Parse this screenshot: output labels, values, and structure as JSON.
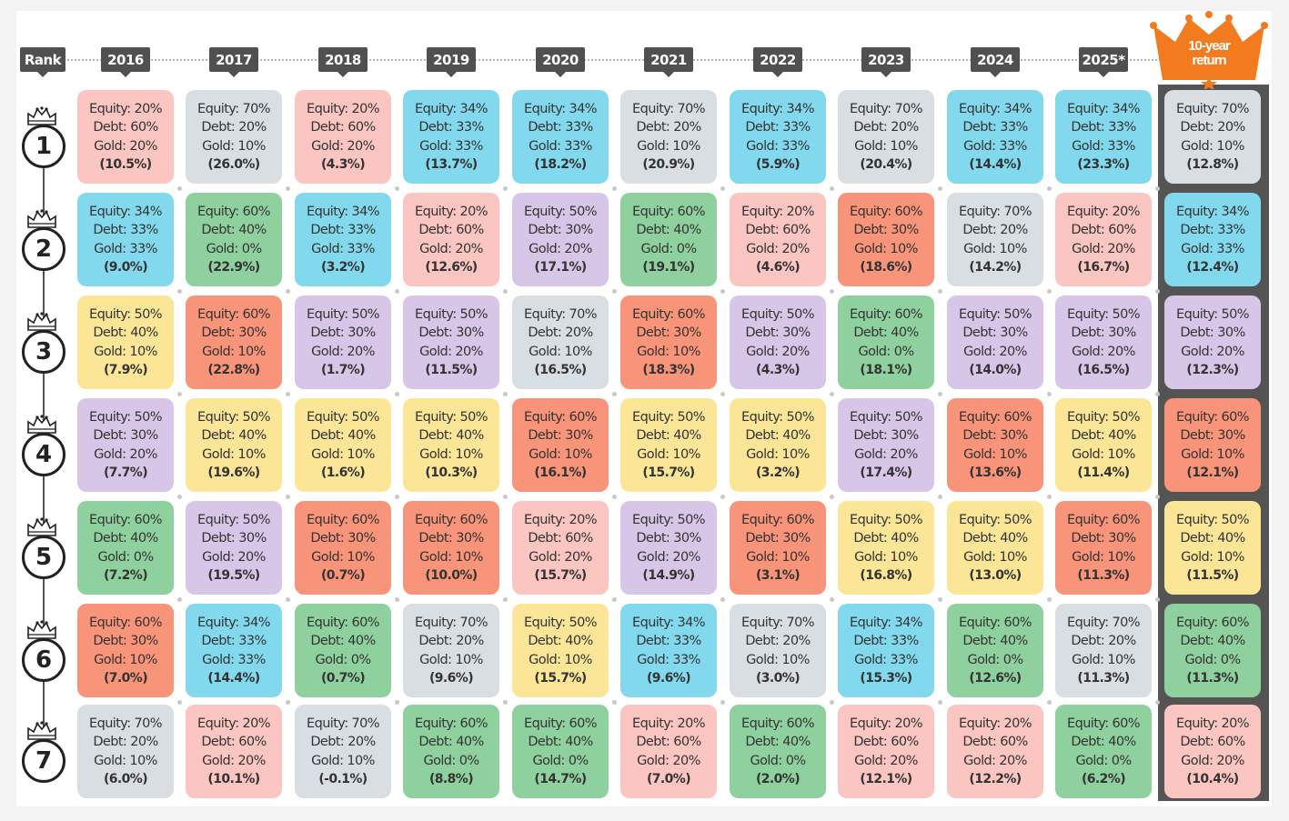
{
  "chart_data": {
    "type": "table",
    "header": {
      "rank_label": "Rank",
      "years": [
        "2016",
        "2017",
        "2018",
        "2019",
        "2020",
        "2021",
        "2022",
        "2023",
        "2024",
        "2025*"
      ],
      "ten_year_label": [
        "10-year",
        "return"
      ]
    },
    "ranks": [
      "1",
      "2",
      "3",
      "4",
      "5",
      "6",
      "7"
    ],
    "allocations": {
      "A": {
        "lines": [
          "Equity: 20%",
          "Debt: 60%",
          "Gold: 20%"
        ],
        "color": "#fbc5c1"
      },
      "B": {
        "lines": [
          "Equity: 70%",
          "Debt: 20%",
          "Gold: 10%"
        ],
        "color": "#d9dee3"
      },
      "C": {
        "lines": [
          "Equity: 34%",
          "Debt: 33%",
          "Gold: 33%"
        ],
        "color": "#82d9ee"
      },
      "D": {
        "lines": [
          "Equity: 60%",
          "Debt: 40%",
          "Gold: 0%"
        ],
        "color": "#8fd19e"
      },
      "E": {
        "lines": [
          "Equity: 50%",
          "Debt: 30%",
          "Gold: 20%"
        ],
        "color": "#d8c6e8"
      },
      "F": {
        "lines": [
          "Equity: 60%",
          "Debt: 30%",
          "Gold: 10%"
        ],
        "color": "#f8947a"
      },
      "G": {
        "lines": [
          "Equity: 50%",
          "Debt: 40%",
          "Gold: 10%"
        ],
        "color": "#fbe597"
      }
    },
    "columns": [
      {
        "label": "2016",
        "cells": [
          [
            "A",
            "(10.5%)"
          ],
          [
            "C",
            "(9.0%)"
          ],
          [
            "G",
            "(7.9%)"
          ],
          [
            "E",
            "(7.7%)"
          ],
          [
            "D",
            "(7.2%)"
          ],
          [
            "F",
            "(7.0%)"
          ],
          [
            "B",
            "(6.0%)"
          ]
        ]
      },
      {
        "label": "2017",
        "cells": [
          [
            "B",
            "(26.0%)"
          ],
          [
            "D",
            "(22.9%)"
          ],
          [
            "F",
            "(22.8%)"
          ],
          [
            "G",
            "(19.6%)"
          ],
          [
            "E",
            "(19.5%)"
          ],
          [
            "C",
            "(14.4%)"
          ],
          [
            "A",
            "(10.1%)"
          ]
        ]
      },
      {
        "label": "2018",
        "cells": [
          [
            "A",
            "(4.3%)"
          ],
          [
            "C",
            "(3.2%)"
          ],
          [
            "E",
            "(1.7%)"
          ],
          [
            "G",
            "(1.6%)"
          ],
          [
            "F",
            "(0.7%)"
          ],
          [
            "D",
            "(0.7%)"
          ],
          [
            "B",
            "(-0.1%)"
          ]
        ]
      },
      {
        "label": "2019",
        "cells": [
          [
            "C",
            "(13.7%)"
          ],
          [
            "A",
            "(12.6%)"
          ],
          [
            "E",
            "(11.5%)"
          ],
          [
            "G",
            "(10.3%)"
          ],
          [
            "F",
            "(10.0%)"
          ],
          [
            "B",
            "(9.6%)"
          ],
          [
            "D",
            "(8.8%)"
          ]
        ]
      },
      {
        "label": "2020",
        "cells": [
          [
            "C",
            "(18.2%)"
          ],
          [
            "E",
            "(17.1%)"
          ],
          [
            "B",
            "(16.5%)"
          ],
          [
            "F",
            "(16.1%)"
          ],
          [
            "A",
            "(15.7%)"
          ],
          [
            "G",
            "(15.7%)"
          ],
          [
            "D",
            "(14.7%)"
          ]
        ]
      },
      {
        "label": "2021",
        "cells": [
          [
            "B",
            "(20.9%)"
          ],
          [
            "D",
            "(19.1%)"
          ],
          [
            "F",
            "(18.3%)"
          ],
          [
            "G",
            "(15.7%)"
          ],
          [
            "E",
            "(14.9%)"
          ],
          [
            "C",
            "(9.6%)"
          ],
          [
            "A",
            "(7.0%)"
          ]
        ]
      },
      {
        "label": "2022",
        "cells": [
          [
            "C",
            "(5.9%)"
          ],
          [
            "A",
            "(4.6%)"
          ],
          [
            "E",
            "(4.3%)"
          ],
          [
            "G",
            "(3.2%)"
          ],
          [
            "F",
            "(3.1%)"
          ],
          [
            "B",
            "(3.0%)"
          ],
          [
            "D",
            "(2.0%)"
          ]
        ]
      },
      {
        "label": "2023",
        "cells": [
          [
            "B",
            "(20.4%)"
          ],
          [
            "F",
            "(18.6%)"
          ],
          [
            "D",
            "(18.1%)"
          ],
          [
            "E",
            "(17.4%)"
          ],
          [
            "G",
            "(16.8%)"
          ],
          [
            "C",
            "(15.3%)"
          ],
          [
            "A",
            "(12.1%)"
          ]
        ]
      },
      {
        "label": "2024",
        "cells": [
          [
            "C",
            "(14.4%)"
          ],
          [
            "B",
            "(14.2%)"
          ],
          [
            "E",
            "(14.0%)"
          ],
          [
            "F",
            "(13.6%)"
          ],
          [
            "G",
            "(13.0%)"
          ],
          [
            "D",
            "(12.6%)"
          ],
          [
            "A",
            "(12.2%)"
          ]
        ]
      },
      {
        "label": "2025*",
        "cells": [
          [
            "C",
            "(23.3%)"
          ],
          [
            "A",
            "(16.7%)"
          ],
          [
            "E",
            "(16.5%)"
          ],
          [
            "G",
            "(11.4%)"
          ],
          [
            "F",
            "(11.3%)"
          ],
          [
            "B",
            "(11.3%)"
          ],
          [
            "D",
            "(6.2%)"
          ]
        ]
      },
      {
        "label": "10-year return",
        "cells": [
          [
            "B",
            "(12.8%)"
          ],
          [
            "C",
            "(12.4%)"
          ],
          [
            "E",
            "(12.3%)"
          ],
          [
            "F",
            "(12.1%)"
          ],
          [
            "G",
            "(11.5%)"
          ],
          [
            "D",
            "(11.3%)"
          ],
          [
            "A",
            "(10.4%)"
          ]
        ]
      }
    ],
    "colors": {
      "header_bg": "#505050",
      "crown": "#f27b1f",
      "ten_year_band": "#545454",
      "circle_border": "#222222"
    }
  }
}
